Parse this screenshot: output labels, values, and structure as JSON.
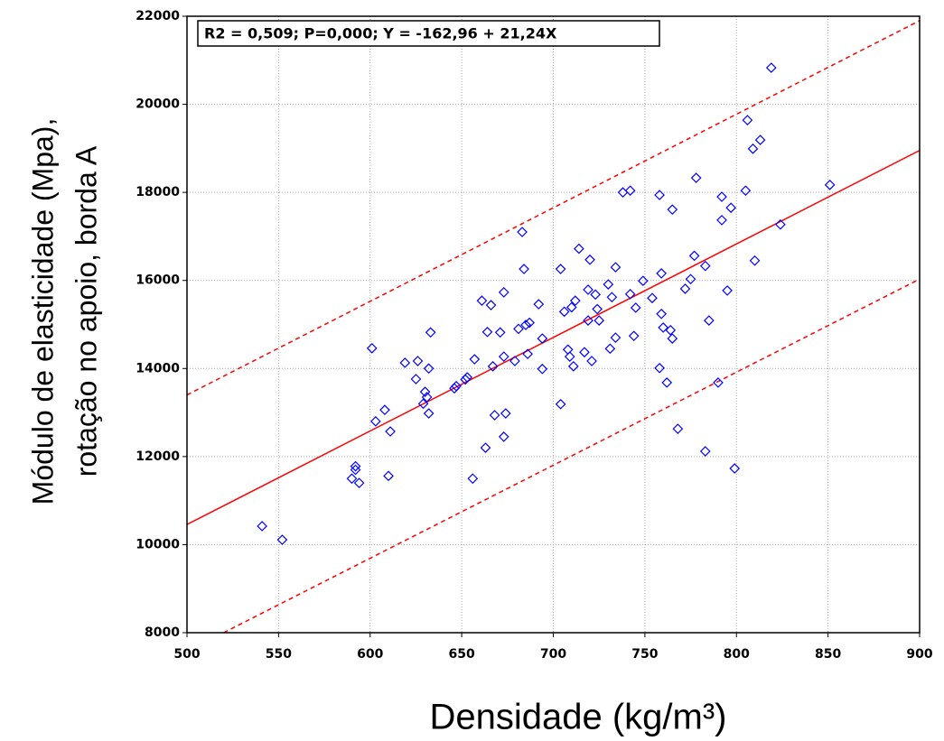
{
  "chart_data": {
    "type": "scatter",
    "annotation": "R2 = 0,509; P=0,000; Y = -162,96 + 21,24X",
    "xlabel": "Densidade (kg/m³)",
    "ylabel": [
      "Módulo de elasticidade (Mpa),",
      "rotação no apoio, borda A"
    ],
    "xlim": [
      500,
      900
    ],
    "ylim": [
      8000,
      22000
    ],
    "xticks": [
      500,
      550,
      600,
      650,
      700,
      750,
      800,
      850,
      900
    ],
    "yticks": [
      8000,
      10000,
      12000,
      14000,
      16000,
      18000,
      20000,
      22000
    ],
    "grid": true,
    "color": "#0000ff",
    "x": [
      541,
      552,
      590,
      592,
      592,
      594,
      610,
      611,
      608,
      603,
      601,
      619,
      626,
      625,
      629,
      630,
      631,
      632,
      633,
      632,
      646,
      647,
      652,
      653,
      657,
      656,
      661,
      666,
      663,
      664,
      667,
      671,
      673,
      668,
      674,
      673,
      673,
      679,
      683,
      684,
      681,
      685,
      686,
      687,
      692,
      694,
      694,
      704,
      704,
      706,
      708,
      710,
      709,
      712,
      711,
      714,
      717,
      719,
      719,
      720,
      721,
      723,
      724,
      725,
      730,
      732,
      731,
      734,
      734,
      738,
      742,
      742,
      744,
      745,
      749,
      754,
      758,
      758,
      759,
      759,
      760,
      762,
      764,
      765,
      765,
      768,
      772,
      775,
      777,
      778,
      783,
      783,
      785,
      790,
      792,
      792,
      795,
      797,
      799,
      805,
      806,
      809,
      810,
      813,
      819,
      824,
      851
    ],
    "values": [
      10420,
      10110,
      11500,
      11700,
      11780,
      11400,
      11560,
      12570,
      13060,
      12800,
      14460,
      14130,
      14170,
      13760,
      13200,
      13470,
      13350,
      14000,
      14820,
      12980,
      13550,
      13600,
      13750,
      13800,
      14210,
      11500,
      15540,
      15440,
      12200,
      14830,
      14050,
      14820,
      15730,
      12940,
      12980,
      12450,
      14270,
      14170,
      17100,
      16260,
      14900,
      14990,
      14330,
      15040,
      15460,
      14680,
      13990,
      16260,
      13190,
      15290,
      14430,
      15390,
      14270,
      15540,
      14050,
      16720,
      14370,
      15790,
      15090,
      16470,
      14170,
      15680,
      15350,
      15090,
      15910,
      15620,
      14450,
      16300,
      14700,
      18000,
      18040,
      15690,
      14740,
      15380,
      15990,
      15600,
      17940,
      14010,
      16160,
      15240,
      14930,
      13680,
      14870,
      14680,
      17610,
      12630,
      15810,
      16030,
      16560,
      18330,
      16330,
      12120,
      15090,
      13680,
      17900,
      17370,
      15770,
      17650,
      11730,
      18040,
      19640,
      18990,
      16450,
      19190,
      20830,
      17270,
      18170
    ],
    "lines": [
      {
        "x": [
          500,
          900
        ],
        "values": [
          10457,
          18953
        ],
        "color": "#ff0000",
        "dashed": false
      },
      {
        "x": [
          500,
          900
        ],
        "values": [
          13400,
          21900
        ],
        "color": "#ff0000",
        "dashed": true
      },
      {
        "x": [
          520,
          900
        ],
        "values": [
          8000,
          16030
        ],
        "color": "#ff0000",
        "dashed": true
      }
    ]
  }
}
